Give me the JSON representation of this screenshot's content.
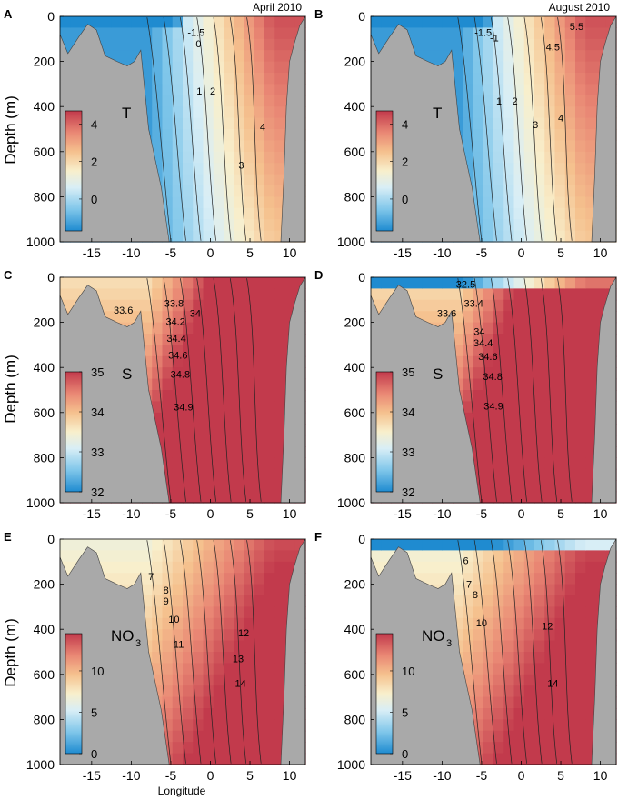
{
  "figure": {
    "ylabel": "Depth (m)",
    "xlabel": "Longitude",
    "col_titles": [
      "April 2010",
      "August 2010"
    ]
  },
  "chart_data": [
    {
      "type": "heatmap",
      "panel": "A",
      "variable": "T",
      "month": "April 2010",
      "xlim": [
        -19,
        12
      ],
      "ylim": [
        1000,
        0
      ],
      "xticks": [
        -15,
        -10,
        -5,
        0,
        5,
        10
      ],
      "yticks": [
        0,
        200,
        400,
        600,
        800,
        1000
      ],
      "colorbar": {
        "range": [
          -1.7,
          4.7
        ],
        "ticks": [
          0,
          2,
          4
        ]
      },
      "contour_labels": [
        {
          "text": "-1.5",
          "x": -1.8,
          "y": 70
        },
        {
          "text": "0",
          "x": -1.5,
          "y": 120
        },
        {
          "text": "1",
          "x": -1.4,
          "y": 330
        },
        {
          "text": "2",
          "x": 0.3,
          "y": 330
        },
        {
          "text": "3",
          "x": 3.9,
          "y": 660
        },
        {
          "text": "4",
          "x": 6.6,
          "y": 490
        }
      ]
    },
    {
      "type": "heatmap",
      "panel": "B",
      "variable": "T",
      "month": "August 2010",
      "xlim": [
        -19,
        12
      ],
      "ylim": [
        1000,
        0
      ],
      "xticks": [
        -15,
        -10,
        -5,
        0,
        5,
        10
      ],
      "yticks": [
        0,
        200,
        400,
        600,
        800,
        1000
      ],
      "colorbar": {
        "range": [
          -1.7,
          4.7
        ],
        "ticks": [
          0,
          2,
          4
        ]
      },
      "contour_labels": [
        {
          "text": "-1.5",
          "x": -4.8,
          "y": 70
        },
        {
          "text": "-1",
          "x": -3.4,
          "y": 95
        },
        {
          "text": "1",
          "x": -2.8,
          "y": 375
        },
        {
          "text": "2",
          "x": -0.8,
          "y": 375
        },
        {
          "text": "3",
          "x": 1.8,
          "y": 480
        },
        {
          "text": "4",
          "x": 5.0,
          "y": 450
        },
        {
          "text": "4.5",
          "x": 4.0,
          "y": 135
        },
        {
          "text": "5.5",
          "x": 7.0,
          "y": 45
        }
      ]
    },
    {
      "type": "heatmap",
      "panel": "C",
      "variable": "S",
      "month": "April 2010",
      "xlim": [
        -19,
        12
      ],
      "ylim": [
        1000,
        0
      ],
      "xticks": [
        -15,
        -10,
        -5,
        0,
        5,
        10
      ],
      "yticks": [
        0,
        200,
        400,
        600,
        800,
        1000
      ],
      "colorbar": {
        "range": [
          32,
          35
        ],
        "ticks": [
          32,
          33,
          34,
          35
        ]
      },
      "contour_labels": [
        {
          "text": "33.6",
          "x": -11.0,
          "y": 145
        },
        {
          "text": "33.8",
          "x": -4.6,
          "y": 115
        },
        {
          "text": "34",
          "x": -1.9,
          "y": 160
        },
        {
          "text": "34.2",
          "x": -4.4,
          "y": 195
        },
        {
          "text": "34.4",
          "x": -4.3,
          "y": 270
        },
        {
          "text": "34.6",
          "x": -4.1,
          "y": 345
        },
        {
          "text": "34.8",
          "x": -3.8,
          "y": 430
        },
        {
          "text": "34.9",
          "x": -3.4,
          "y": 575
        }
      ]
    },
    {
      "type": "heatmap",
      "panel": "D",
      "variable": "S",
      "month": "August 2010",
      "xlim": [
        -19,
        12
      ],
      "ylim": [
        1000,
        0
      ],
      "xticks": [
        -15,
        -10,
        -5,
        0,
        5,
        10
      ],
      "yticks": [
        0,
        200,
        400,
        600,
        800,
        1000
      ],
      "colorbar": {
        "range": [
          32,
          35
        ],
        "ticks": [
          32,
          33,
          34,
          35
        ]
      },
      "contour_labels": [
        {
          "text": "32.5",
          "x": -7.0,
          "y": 30
        },
        {
          "text": "33.4",
          "x": -6.0,
          "y": 115
        },
        {
          "text": "33.6",
          "x": -9.4,
          "y": 160
        },
        {
          "text": "34",
          "x": -5.3,
          "y": 240
        },
        {
          "text": "34.4",
          "x": -4.8,
          "y": 290
        },
        {
          "text": "34.6",
          "x": -4.2,
          "y": 350
        },
        {
          "text": "34.8",
          "x": -3.6,
          "y": 440
        },
        {
          "text": "34.9",
          "x": -3.5,
          "y": 570
        }
      ]
    },
    {
      "type": "heatmap",
      "panel": "E",
      "variable": "NO3",
      "month": "April 2010",
      "xlim": [
        -19,
        12
      ],
      "ylim": [
        1000,
        0
      ],
      "xticks": [
        -15,
        -10,
        -5,
        0,
        5,
        10
      ],
      "yticks": [
        0,
        200,
        400,
        600,
        800,
        1000
      ],
      "colorbar": {
        "range": [
          0,
          14.5
        ],
        "ticks": [
          0,
          5,
          10
        ]
      },
      "contour_labels": [
        {
          "text": "7",
          "x": -7.5,
          "y": 165
        },
        {
          "text": "8",
          "x": -5.6,
          "y": 225
        },
        {
          "text": "9",
          "x": -5.6,
          "y": 275
        },
        {
          "text": "10",
          "x": -4.6,
          "y": 355
        },
        {
          "text": "11",
          "x": -4.0,
          "y": 465
        },
        {
          "text": "12",
          "x": 4.2,
          "y": 415
        },
        {
          "text": "13",
          "x": 3.5,
          "y": 530
        },
        {
          "text": "14",
          "x": 3.8,
          "y": 640
        }
      ]
    },
    {
      "type": "heatmap",
      "panel": "F",
      "variable": "NO3",
      "month": "August 2010",
      "xlim": [
        -19,
        12
      ],
      "ylim": [
        1000,
        0
      ],
      "xticks": [
        -15,
        -10,
        -5,
        0,
        5,
        10
      ],
      "yticks": [
        0,
        200,
        400,
        600,
        800,
        1000
      ],
      "colorbar": {
        "range": [
          0,
          14.5
        ],
        "ticks": [
          0,
          5,
          10
        ]
      },
      "contour_labels": [
        {
          "text": "6",
          "x": -7.0,
          "y": 95
        },
        {
          "text": "7",
          "x": -6.6,
          "y": 200
        },
        {
          "text": "8",
          "x": -5.8,
          "y": 245
        },
        {
          "text": "10",
          "x": -5.0,
          "y": 370
        },
        {
          "text": "12",
          "x": 3.3,
          "y": 385
        },
        {
          "text": "14",
          "x": 4.0,
          "y": 640
        }
      ]
    }
  ]
}
